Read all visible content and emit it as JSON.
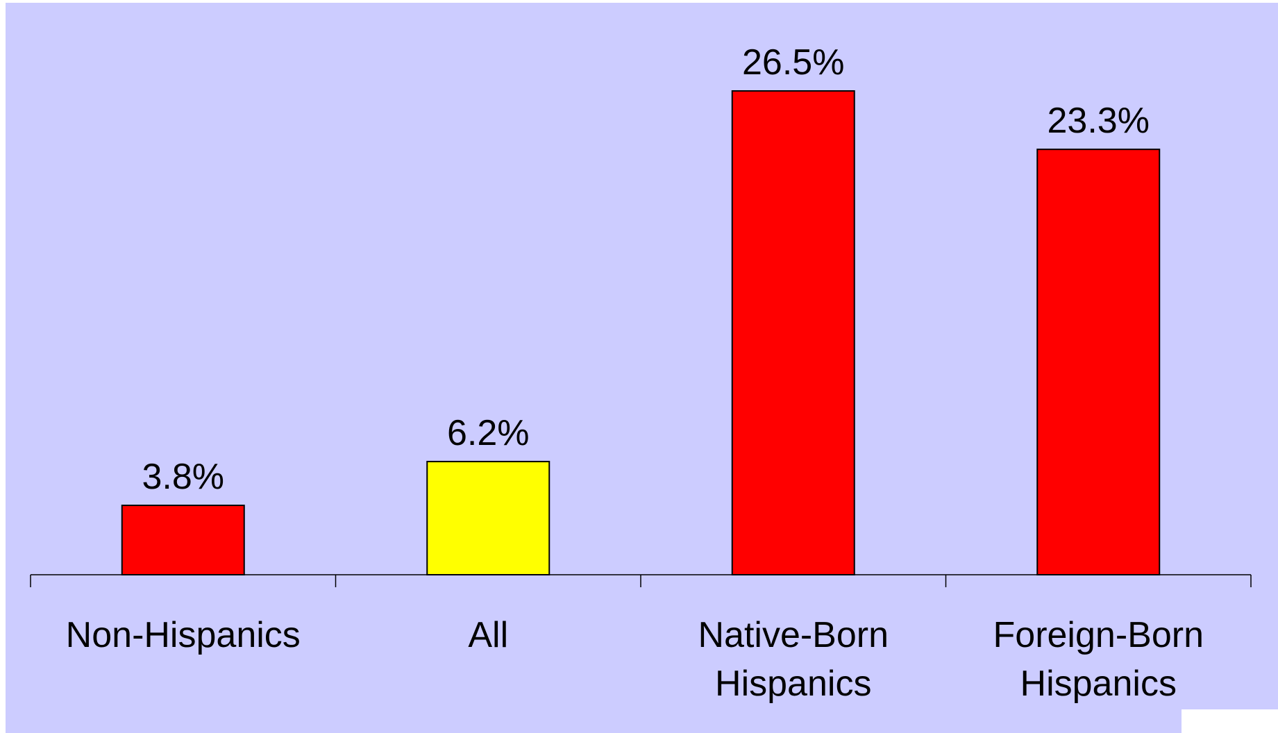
{
  "chart_data": {
    "type": "bar",
    "categories": [
      [
        "Non-Hispanics"
      ],
      [
        "All"
      ],
      [
        "Native-Born",
        "Hispanics"
      ],
      [
        "Foreign-Born",
        "Hispanics"
      ]
    ],
    "values": [
      3.8,
      6.2,
      26.5,
      23.3
    ],
    "data_labels": [
      "3.8%",
      "6.2%",
      "26.5%",
      "23.3%"
    ],
    "ylim": [
      0,
      26.5
    ],
    "grid": false,
    "legend": "none"
  },
  "colors": {
    "background": "#ccccff",
    "bars": [
      "#ff0000",
      "#ffff00",
      "#ff0000",
      "#ff0000"
    ],
    "bar_outline": "#000000",
    "axis": "#000000"
  }
}
